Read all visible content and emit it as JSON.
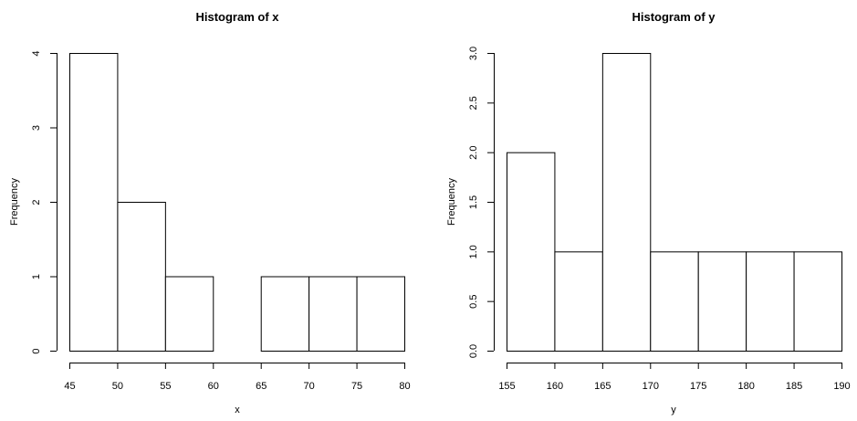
{
  "chart_data": [
    {
      "type": "bar",
      "subtype": "histogram",
      "title": "Histogram of x",
      "xlabel": "x",
      "ylabel": "Frequency",
      "bins": [
        [
          45,
          50
        ],
        [
          50,
          55
        ],
        [
          55,
          60
        ],
        [
          60,
          65
        ],
        [
          65,
          70
        ],
        [
          70,
          75
        ],
        [
          75,
          80
        ]
      ],
      "values": [
        4,
        2,
        1,
        0,
        1,
        1,
        1
      ],
      "xlim": [
        45,
        80
      ],
      "ylim": [
        0,
        4
      ],
      "x_ticks": [
        "45",
        "50",
        "55",
        "60",
        "65",
        "70",
        "75",
        "80"
      ],
      "y_ticks": [
        "0",
        "1",
        "2",
        "3",
        "4"
      ],
      "grid": false,
      "bar_fill": "#ffffff",
      "bar_stroke": "#000000"
    },
    {
      "type": "bar",
      "subtype": "histogram",
      "title": "Histogram of y",
      "xlabel": "y",
      "ylabel": "Frequency",
      "bins": [
        [
          155,
          160
        ],
        [
          160,
          165
        ],
        [
          165,
          170
        ],
        [
          170,
          175
        ],
        [
          175,
          180
        ],
        [
          180,
          185
        ],
        [
          185,
          190
        ]
      ],
      "values": [
        2,
        1,
        3,
        1,
        1,
        1,
        1
      ],
      "xlim": [
        155,
        190
      ],
      "ylim": [
        0,
        3
      ],
      "x_ticks": [
        "155",
        "160",
        "165",
        "170",
        "175",
        "180",
        "185",
        "190"
      ],
      "y_ticks": [
        "0.0",
        "0.5",
        "1.0",
        "1.5",
        "2.0",
        "2.5",
        "3.0"
      ],
      "grid": false,
      "bar_fill": "#ffffff",
      "bar_stroke": "#000000"
    }
  ]
}
